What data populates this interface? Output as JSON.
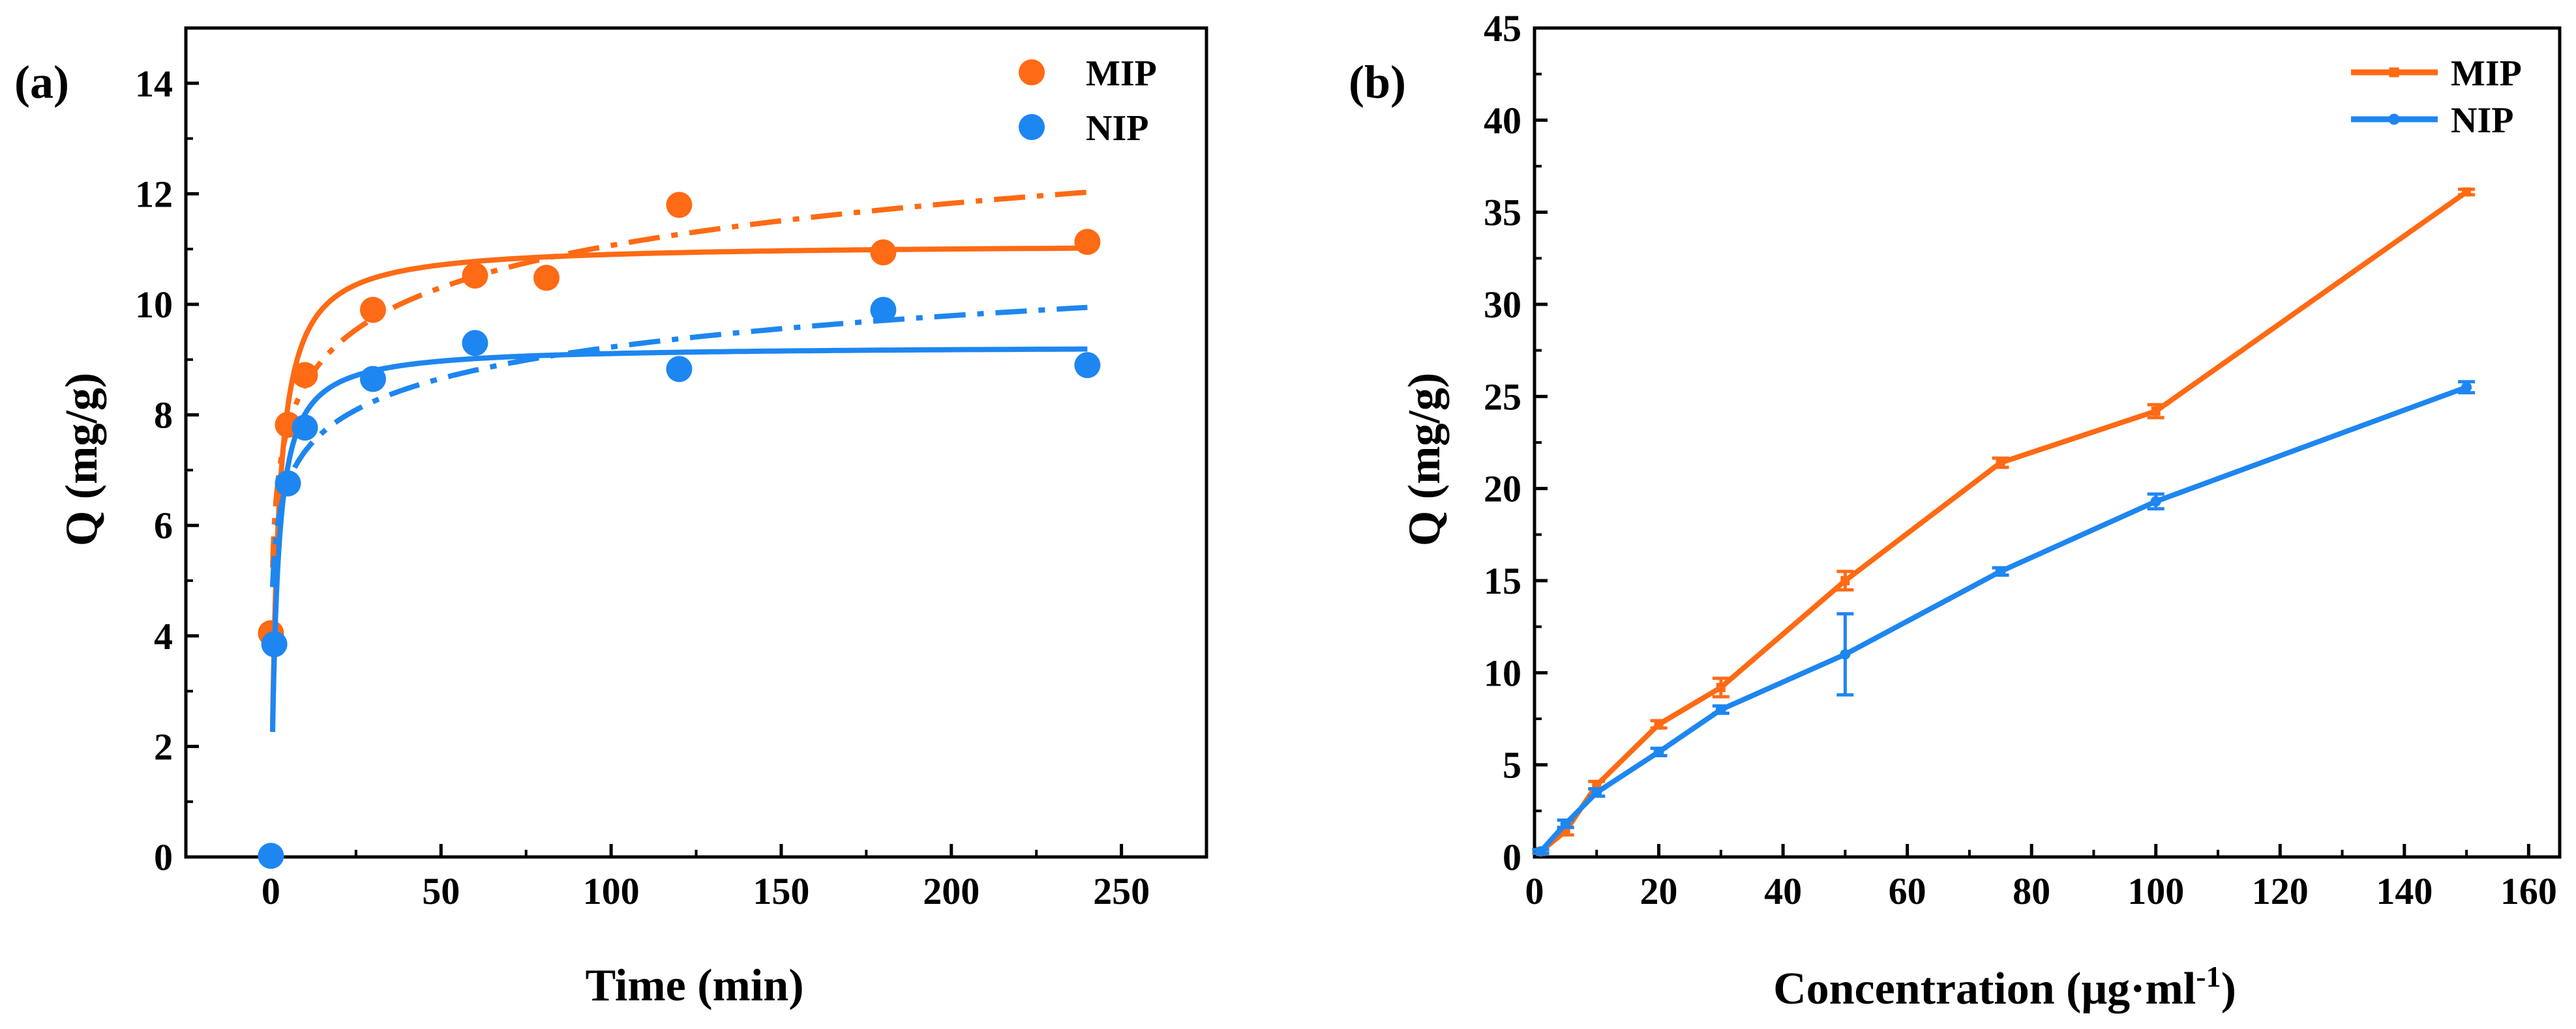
{
  "colors": {
    "mip": "#FF6A14",
    "nip": "#1E86F0",
    "axis": "#000000"
  },
  "chart_data": [
    {
      "type": "scatter",
      "panel_label": "(a)",
      "xlabel": "Time (min)",
      "ylabel": "Q (mg/g)",
      "xlim": [
        -25,
        275
      ],
      "ylim": [
        0,
        15
      ],
      "xticks": [
        0,
        50,
        100,
        150,
        200,
        250
      ],
      "yticks": [
        0,
        2,
        4,
        6,
        8,
        10,
        12,
        14
      ],
      "legend_position": "top-right",
      "series": [
        {
          "name": "MIP",
          "color_key": "mip",
          "points": [
            [
              0,
              4.05
            ],
            [
              5,
              7.82
            ],
            [
              10,
              8.72
            ],
            [
              30,
              9.9
            ],
            [
              60,
              10.52
            ],
            [
              81,
              10.48
            ],
            [
              120,
              11.8
            ],
            [
              180,
              10.94
            ],
            [
              240,
              11.13
            ]
          ],
          "fit_solid": {
            "model": "pseudo-second-order",
            "qe": 11.1,
            "k": 0.05,
            "x_range": [
              0.5,
              240
            ]
          },
          "fit_dashdot": {
            "model": "intraparticle-log",
            "a": 6.0,
            "b": 1.1,
            "x_range": [
              0.5,
              240
            ]
          }
        },
        {
          "name": "NIP",
          "color_key": "nip",
          "points": [
            [
              0,
              0.02
            ],
            [
              1,
              3.85
            ],
            [
              5,
              6.76
            ],
            [
              10,
              7.77
            ],
            [
              30,
              8.65
            ],
            [
              60,
              9.3
            ],
            [
              120,
              8.83
            ],
            [
              180,
              9.9
            ],
            [
              240,
              8.9
            ]
          ],
          "fit_solid": {
            "model": "pseudo-second-order",
            "qe": 9.25,
            "k": 0.07,
            "x_range": [
              0.5,
              240
            ]
          },
          "fit_dashdot": {
            "model": "intraparticle-log",
            "a": 5.45,
            "b": 0.82,
            "x_range": [
              0.5,
              240
            ]
          }
        }
      ]
    },
    {
      "type": "line",
      "panel_label": "(b)",
      "xlabel": "Concentration (μg·ml",
      "xlabel_sup": "-1",
      "xlabel_end": ")",
      "ylabel": "Q (mg/g)",
      "xlim": [
        0,
        165
      ],
      "ylim": [
        0,
        45
      ],
      "xticks": [
        0,
        20,
        40,
        60,
        80,
        100,
        120,
        140,
        160
      ],
      "yticks": [
        0,
        5,
        10,
        15,
        20,
        25,
        30,
        35,
        40,
        45
      ],
      "legend_position": "top-right",
      "series": [
        {
          "name": "MIP",
          "color_key": "mip",
          "x": [
            1,
            5,
            10,
            20,
            30,
            50,
            75,
            100,
            150
          ],
          "y": [
            0.3,
            1.4,
            3.9,
            7.2,
            9.2,
            15.0,
            21.4,
            24.2,
            36.1
          ],
          "err": [
            0.1,
            0.2,
            0.2,
            0.2,
            0.5,
            0.5,
            0.25,
            0.35,
            0.15
          ]
        },
        {
          "name": "NIP",
          "color_key": "nip",
          "x": [
            1,
            5,
            10,
            20,
            30,
            50,
            75,
            100,
            150
          ],
          "y": [
            0.3,
            1.8,
            3.5,
            5.7,
            8.0,
            11.0,
            15.5,
            19.3,
            25.5
          ],
          "err": [
            0.1,
            0.2,
            0.2,
            0.2,
            0.2,
            2.2,
            0.2,
            0.4,
            0.3
          ]
        }
      ]
    }
  ]
}
